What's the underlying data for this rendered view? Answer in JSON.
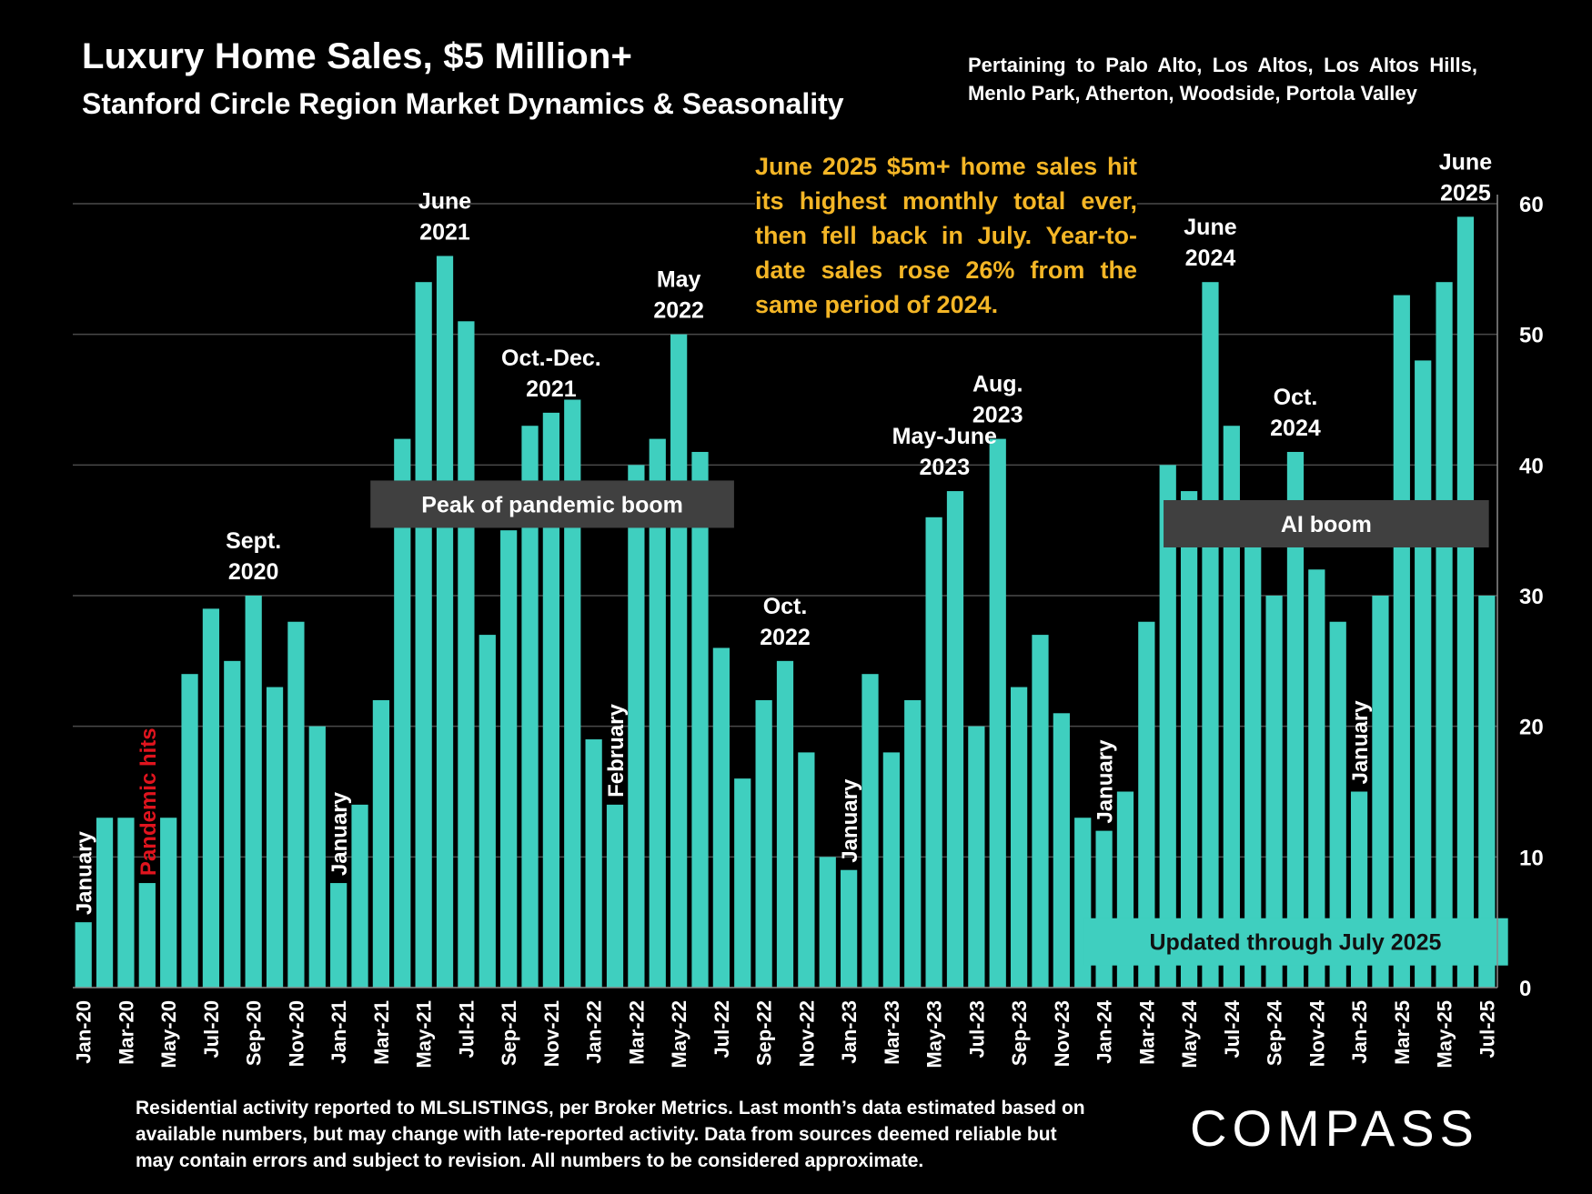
{
  "header": {
    "title": "Luxury Home Sales, $5 Million+",
    "subtitle": "Stanford Circle Region Market Dynamics & Seasonality",
    "pertains": "Pertaining to Palo Alto, Los Altos, Los Altos Hills, Menlo Park, Atherton, Woodside, Portola Valley"
  },
  "callout": "June 2025 $5m+ home sales hit its highest monthly total ever, then fell back in July. Year-to-date sales rose 26% from the same period of 2024.",
  "footnote": "Residential activity reported to MLSLISTINGS, per Broker Metrics. Last month’s data estimated based on available numbers, but may change with late-reported activity. Data from sources deemed reliable but may contain errors and subject to revision. All numbers to be considered approximate.",
  "logo": {
    "text": "COMPASS"
  },
  "colors": {
    "bar": "#3fcfbf",
    "box": "#404040",
    "callout": "#f4b626",
    "red": "#e0141e",
    "grid": "#4a4a4a"
  },
  "chart_data": {
    "type": "bar",
    "title": "Luxury Home Sales, $5 Million+",
    "xlabel": "",
    "ylabel": "",
    "ylim": [
      0,
      60
    ],
    "yticks": [
      0,
      10,
      20,
      30,
      40,
      50,
      60
    ],
    "grid": true,
    "categories": [
      "Jan-20",
      "Feb-20",
      "Mar-20",
      "Apr-20",
      "May-20",
      "Jun-20",
      "Jul-20",
      "Aug-20",
      "Sep-20",
      "Oct-20",
      "Nov-20",
      "Dec-20",
      "Jan-21",
      "Feb-21",
      "Mar-21",
      "Apr-21",
      "May-21",
      "Jun-21",
      "Jul-21",
      "Aug-21",
      "Sep-21",
      "Oct-21",
      "Nov-21",
      "Dec-21",
      "Jan-22",
      "Feb-22",
      "Mar-22",
      "Apr-22",
      "May-22",
      "Jun-22",
      "Jul-22",
      "Aug-22",
      "Sep-22",
      "Oct-22",
      "Nov-22",
      "Dec-22",
      "Jan-23",
      "Feb-23",
      "Mar-23",
      "Apr-23",
      "May-23",
      "Jun-23",
      "Jul-23",
      "Aug-23",
      "Sep-23",
      "Oct-23",
      "Nov-23",
      "Dec-23",
      "Jan-24",
      "Feb-24",
      "Mar-24",
      "Apr-24",
      "May-24",
      "Jun-24",
      "Jul-24",
      "Aug-24",
      "Sep-24",
      "Oct-24",
      "Nov-24",
      "Dec-24",
      "Jan-25",
      "Feb-25",
      "Mar-25",
      "Apr-25",
      "May-25",
      "Jun-25",
      "Jul-25"
    ],
    "values": [
      5,
      13,
      13,
      8,
      13,
      24,
      29,
      25,
      30,
      23,
      28,
      20,
      8,
      14,
      22,
      42,
      54,
      56,
      51,
      27,
      35,
      43,
      44,
      45,
      19,
      14,
      40,
      42,
      50,
      41,
      26,
      16,
      22,
      25,
      18,
      10,
      9,
      24,
      18,
      22,
      36,
      38,
      20,
      42,
      23,
      27,
      21,
      13,
      12,
      15,
      28,
      40,
      38,
      54,
      43,
      35,
      30,
      41,
      32,
      28,
      15,
      30,
      53,
      48,
      54,
      59,
      30
    ],
    "tick_labels": [
      "Jan-20",
      "Mar-20",
      "May-20",
      "Jul-20",
      "Sep-20",
      "Nov-20",
      "Jan-21",
      "Mar-21",
      "May-21",
      "Jul-21",
      "Sep-21",
      "Nov-21",
      "Jan-22",
      "Mar-22",
      "May-22",
      "Jul-22",
      "Sep-22",
      "Nov-22",
      "Jan-23",
      "Mar-23",
      "May-23",
      "Jul-23",
      "Sep-23",
      "Nov-23",
      "Jan-24",
      "Mar-24",
      "May-24",
      "Jul-24",
      "Sep-24",
      "Nov-24",
      "Jan-25",
      "Mar-25",
      "May-25",
      "Jul-25"
    ],
    "annotations": [
      {
        "idx": 8,
        "lines": [
          "Sept.",
          "2020"
        ]
      },
      {
        "idx": 17,
        "lines": [
          "June",
          "2021"
        ]
      },
      {
        "idx": 22,
        "lines": [
          "Oct.-Dec.",
          "2021"
        ]
      },
      {
        "idx": 28,
        "lines": [
          "May",
          "2022"
        ]
      },
      {
        "idx": 33,
        "lines": [
          "Oct.",
          "2022"
        ]
      },
      {
        "idx": 40.5,
        "lines": [
          "May-June",
          "2023"
        ]
      },
      {
        "idx": 43,
        "lines": [
          "Aug.",
          "2023"
        ]
      },
      {
        "idx": 53,
        "lines": [
          "June",
          "2024"
        ]
      },
      {
        "idx": 57,
        "lines": [
          "Oct.",
          "2024"
        ]
      },
      {
        "idx": 65,
        "lines": [
          "June",
          "2025"
        ]
      }
    ],
    "vertical_labels": [
      {
        "idx": 0,
        "text": "January",
        "color": "white"
      },
      {
        "idx": 3,
        "text": "Pandemic hits",
        "color": "red"
      },
      {
        "idx": 12,
        "text": "January",
        "color": "white"
      },
      {
        "idx": 25,
        "text": "February",
        "color": "white"
      },
      {
        "idx": 36,
        "text": "January",
        "color": "white"
      },
      {
        "idx": 48,
        "text": "January",
        "color": "white"
      },
      {
        "idx": 60,
        "text": "January",
        "color": "white"
      }
    ],
    "boxes": [
      {
        "text": "Peak of pandemic boom",
        "from": 14,
        "to": 31.1,
        "y": 37
      },
      {
        "text": "AI boom",
        "from": 51.3,
        "to": 66.6,
        "y": 35.5
      },
      {
        "text": "Updated through July 2025",
        "from": 47.5,
        "to": 67.5,
        "y": 3.5,
        "style": "teal"
      }
    ]
  }
}
